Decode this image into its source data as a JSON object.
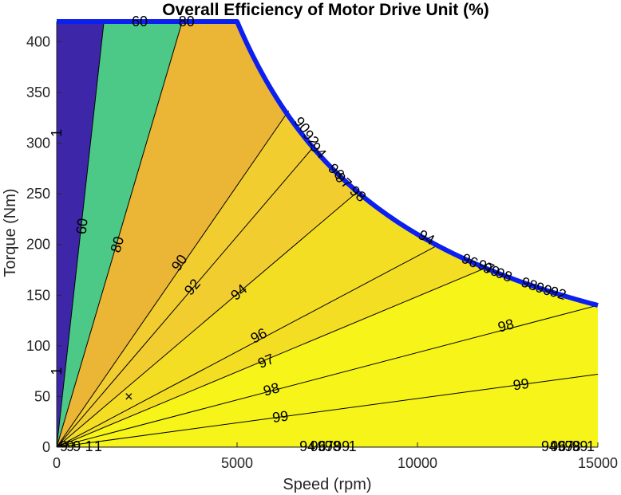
{
  "chart_data": {
    "type": "contour",
    "title": "Overall Efficiency of Motor Drive Unit (%)",
    "xlabel": "Speed (rpm)",
    "ylabel": "Torque (Nm)",
    "xlim": [
      0,
      15000
    ],
    "ylim": [
      0,
      420
    ],
    "xticks": [
      0,
      5000,
      10000,
      15000
    ],
    "yticks": [
      0,
      50,
      100,
      150,
      200,
      250,
      300,
      350,
      400
    ],
    "max_torque_curve": {
      "color": "#0a1ff0",
      "rated_torque": 420,
      "base_speed": 5000,
      "max_speed": 15000,
      "torque_at_max_speed": 140
    },
    "contour_levels": [
      1,
      60,
      80,
      90,
      92,
      94,
      96,
      97,
      98,
      99
    ],
    "bands": [
      {
        "from": 0,
        "to": 60,
        "color": "#3e26a8"
      },
      {
        "from": 60,
        "to": 80,
        "color": "#4cc986"
      },
      {
        "from": 80,
        "to": 90,
        "color": "#ebb536"
      },
      {
        "from": 90,
        "to": 94,
        "color": "#f2cd30"
      },
      {
        "from": 94,
        "to": 97,
        "color": "#f4de24"
      },
      {
        "from": 97,
        "to": 100,
        "color": "#f6f418"
      }
    ],
    "contour_lines": [
      {
        "level": 1,
        "tip_speed": 0,
        "tip_torque": 420,
        "labels": [
          {
            "text": "1",
            "speed": 0,
            "torque": 310
          },
          {
            "text": "1",
            "speed": 0,
            "torque": 75
          }
        ]
      },
      {
        "level": 60,
        "tip_speed": 1310,
        "tip_torque": 420,
        "labels": [
          {
            "text": "60",
            "speed": 700,
            "torque": 218
          },
          {
            "text": "60",
            "speed": 2300,
            "torque": 420
          }
        ]
      },
      {
        "level": 80,
        "tip_speed": 3480,
        "tip_torque": 420,
        "labels": [
          {
            "text": "80",
            "speed": 1680,
            "torque": 200
          },
          {
            "text": "80",
            "speed": 3600,
            "torque": 420
          }
        ]
      },
      {
        "level": 90,
        "tip_speed": 6430,
        "tip_torque": 332,
        "labels": [
          {
            "text": "90",
            "speed": 3400,
            "torque": 182
          }
        ]
      },
      {
        "level": 92,
        "tip_speed": 7160,
        "tip_torque": 298,
        "labels": [
          {
            "text": "92",
            "speed": 3760,
            "torque": 158
          }
        ]
      },
      {
        "level": 94,
        "tip_speed": 8340,
        "tip_torque": 252,
        "labels": [
          {
            "text": "94",
            "speed": 5050,
            "torque": 153
          }
        ]
      },
      {
        "level": 96,
        "tip_speed": 10550,
        "tip_torque": 199,
        "labels": [
          {
            "text": "96",
            "speed": 5600,
            "torque": 110
          }
        ]
      },
      {
        "level": 97,
        "tip_speed": 11900,
        "tip_torque": 177,
        "labels": [
          {
            "text": "97",
            "speed": 5800,
            "torque": 85
          }
        ]
      },
      {
        "level": 98,
        "tip_speed": 15000,
        "tip_torque": 140,
        "labels": [
          {
            "text": "98",
            "speed": 5950,
            "torque": 57
          },
          {
            "text": "98",
            "speed": 12450,
            "torque": 120
          }
        ]
      },
      {
        "level": 99,
        "tip_speed": 15000,
        "tip_torque": 72,
        "labels": [
          {
            "text": "99",
            "speed": 6200,
            "torque": 30
          },
          {
            "text": "99",
            "speed": 12870,
            "torque": 62
          }
        ]
      }
    ],
    "boundary_labels": [
      {
        "text": "90",
        "speed": 6800,
        "torque": 318
      },
      {
        "text": "92",
        "speed": 7050,
        "torque": 305
      },
      {
        "text": "94",
        "speed": 7250,
        "torque": 293
      },
      {
        "text": "96",
        "speed": 7750,
        "torque": 272
      },
      {
        "text": "97",
        "speed": 7950,
        "torque": 263
      },
      {
        "text": "98",
        "speed": 8350,
        "torque": 250
      },
      {
        "text": "94",
        "speed": 10250,
        "torque": 207
      },
      {
        "text": "96",
        "speed": 11450,
        "torque": 184
      },
      {
        "text": "97",
        "speed": 11900,
        "torque": 178
      },
      {
        "text": "99",
        "speed": 12050,
        "torque": 175
      },
      {
        "text": "98",
        "speed": 12400,
        "torque": 170
      },
      {
        "text": "98",
        "speed": 13100,
        "torque": 161
      },
      {
        "text": "99",
        "speed": 13500,
        "torque": 156
      },
      {
        "text": "92",
        "speed": 13900,
        "torque": 152
      }
    ],
    "bottom_labels": [
      {
        "text": "94",
        "speed": 6950
      },
      {
        "text": "96",
        "speed": 7250
      },
      {
        "text": "97",
        "speed": 7450
      },
      {
        "text": "98",
        "speed": 7650
      },
      {
        "text": "99",
        "speed": 7900
      },
      {
        "text": "1",
        "speed": 8200
      },
      {
        "text": "94",
        "speed": 13650
      },
      {
        "text": "96",
        "speed": 13900
      },
      {
        "text": "97",
        "speed": 14100
      },
      {
        "text": "98",
        "speed": 14300
      },
      {
        "text": "99",
        "speed": 14500
      },
      {
        "text": "1",
        "speed": 14800
      }
    ],
    "origin_labels": [
      {
        "text": "9",
        "speed": 200
      },
      {
        "text": "9",
        "speed": 380
      },
      {
        "text": "9",
        "speed": 560
      },
      {
        "text": "1",
        "speed": 900
      },
      {
        "text": "1",
        "speed": 1150
      }
    ],
    "marker": {
      "symbol": "×",
      "speed": 2000,
      "torque": 50
    },
    "grid": false,
    "legend": "none"
  }
}
